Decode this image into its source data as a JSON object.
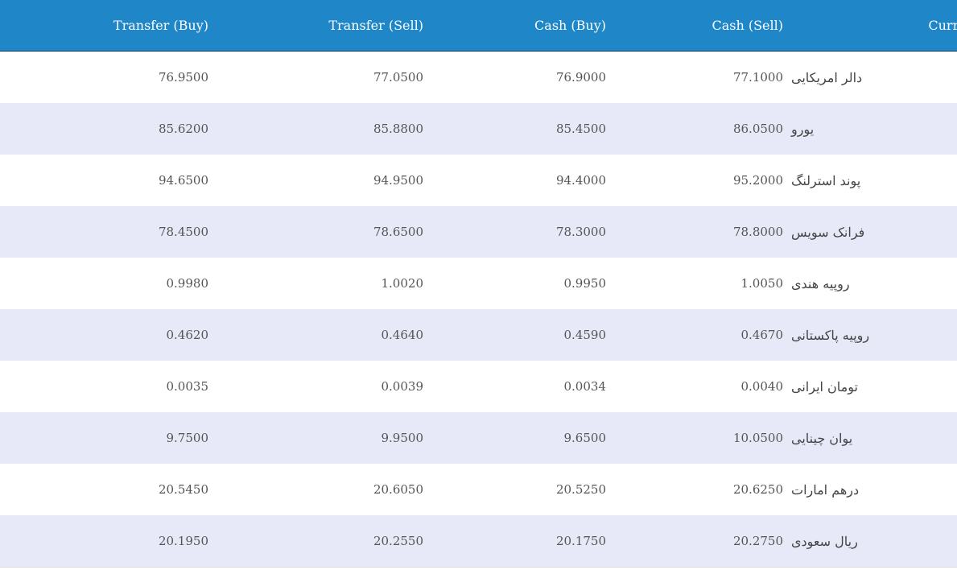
{
  "header": {
    "transfer_buy": "Transfer (Buy)",
    "transfer_sell": "Transfer (Sell)",
    "cash_buy": "Cash (Buy)",
    "cash_sell": "Cash (Sell)",
    "currency": "Currency"
  },
  "colors": {
    "header_bg": "#1f86c8",
    "stripe_bg": "#e8e9f8"
  },
  "rows": [
    {
      "transfer_buy": "76.9500",
      "transfer_sell": "77.0500",
      "cash_buy": "76.9000",
      "cash_sell": "77.1000",
      "currency": "دالر امریکایی"
    },
    {
      "transfer_buy": "85.6200",
      "transfer_sell": "85.8800",
      "cash_buy": "85.4500",
      "cash_sell": "86.0500",
      "currency": "یورو"
    },
    {
      "transfer_buy": "94.6500",
      "transfer_sell": "94.9500",
      "cash_buy": "94.4000",
      "cash_sell": "95.2000",
      "currency": "پوند استرلنگ"
    },
    {
      "transfer_buy": "78.4500",
      "transfer_sell": "78.6500",
      "cash_buy": "78.3000",
      "cash_sell": "78.8000",
      "currency": "فرانک سویس"
    },
    {
      "transfer_buy": "0.9980",
      "transfer_sell": "1.0020",
      "cash_buy": "0.9950",
      "cash_sell": "1.0050",
      "currency": "روپیه هندی"
    },
    {
      "transfer_buy": "0.4620",
      "transfer_sell": "0.4640",
      "cash_buy": "0.4590",
      "cash_sell": "0.4670",
      "currency": "روپیه پاکستانی"
    },
    {
      "transfer_buy": "0.0035",
      "transfer_sell": "0.0039",
      "cash_buy": "0.0034",
      "cash_sell": "0.0040",
      "currency": "تومان ایرانی"
    },
    {
      "transfer_buy": "9.7500",
      "transfer_sell": "9.9500",
      "cash_buy": "9.6500",
      "cash_sell": "10.0500",
      "currency": "یوان چینایی"
    },
    {
      "transfer_buy": "20.5450",
      "transfer_sell": "20.6050",
      "cash_buy": "20.5250",
      "cash_sell": "20.6250",
      "currency": "درهم امارات"
    },
    {
      "transfer_buy": "20.1950",
      "transfer_sell": "20.2550",
      "cash_buy": "20.1750",
      "cash_sell": "20.2750",
      "currency": "ریال سعودی"
    }
  ]
}
